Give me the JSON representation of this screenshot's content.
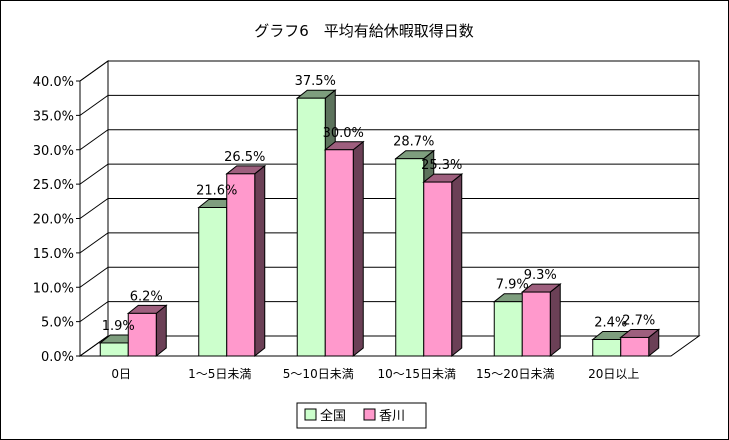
{
  "chart_data": {
    "type": "bar",
    "title": "グラフ6　平均有給休暇取得日数",
    "categories": [
      "0日",
      "1～5日未満",
      "5～10日未満",
      "10～15日未満",
      "15～20日未満",
      "20日以上"
    ],
    "series": [
      {
        "name": "全国",
        "values": [
          1.9,
          21.6,
          37.5,
          28.7,
          7.9,
          2.4
        ],
        "labels": [
          "1.9%",
          "21.6%",
          "37.5%",
          "28.7%",
          "7.9%",
          "2.4%"
        ],
        "color": "#ccffcc"
      },
      {
        "name": "香川",
        "values": [
          6.2,
          26.5,
          30.0,
          25.3,
          9.3,
          2.7
        ],
        "labels": [
          "6.2%",
          "26.5%",
          "30.0%",
          "25.3%",
          "9.3%",
          "2.7%"
        ],
        "color": "#ff99cc"
      }
    ],
    "yticks": [
      "0.0%",
      "5.0%",
      "10.0%",
      "15.0%",
      "20.0%",
      "25.0%",
      "30.0%",
      "35.0%",
      "40.0%"
    ],
    "ylim": [
      0,
      40
    ],
    "grid": true,
    "legend_position": "bottom",
    "three_d": true
  }
}
